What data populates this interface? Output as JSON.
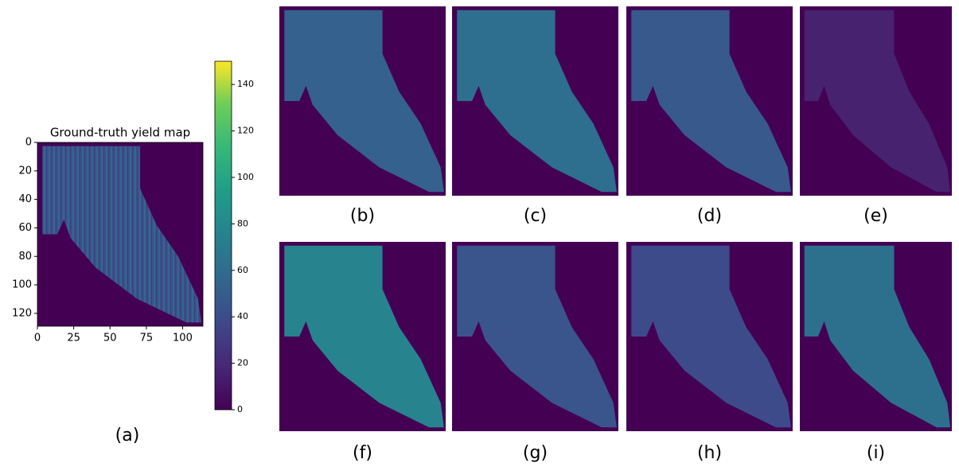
{
  "chart_data": {
    "type": "heatmap",
    "title": "Ground-truth yield map",
    "xlim": [
      0,
      114
    ],
    "ylim": [
      0,
      129
    ],
    "xticks": [
      0,
      25,
      50,
      75,
      100
    ],
    "yticks": [
      0,
      20,
      40,
      60,
      80,
      100,
      120
    ],
    "colorbar": {
      "lim": [
        0,
        150
      ],
      "ticks": [
        0,
        20,
        40,
        60,
        80,
        100,
        120,
        140
      ]
    },
    "caption": "(a)"
  },
  "panels": [
    {
      "label": "(b)"
    },
    {
      "label": "(c)"
    },
    {
      "label": "(d)"
    },
    {
      "label": "(e)"
    },
    {
      "label": "(f)"
    },
    {
      "label": "(g)"
    },
    {
      "label": "(h)"
    },
    {
      "label": "(i)"
    }
  ]
}
